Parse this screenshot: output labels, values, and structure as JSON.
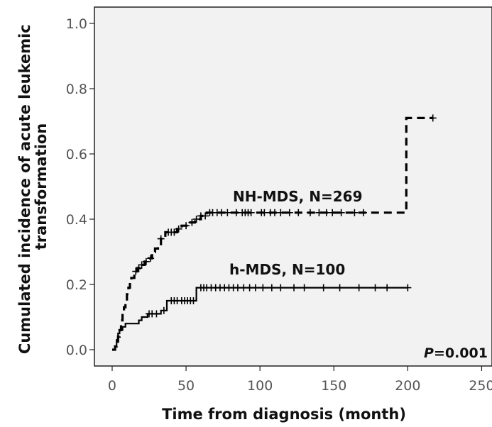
{
  "chart_data": {
    "type": "line",
    "subtype": "kaplan-meier step curve",
    "xlabel": "Time from diagnosis (month)",
    "ylabel": [
      "Cumulated incidence of acute leukemic",
      "transformation"
    ],
    "xlim": [
      -12,
      257
    ],
    "ylim": [
      -0.05,
      1.05
    ],
    "x_ticks": [
      0,
      50,
      100,
      150,
      200,
      250
    ],
    "x_tick_labels": [
      "0",
      "50",
      "100",
      "150",
      "200",
      "250"
    ],
    "y_ticks": [
      0.0,
      0.2,
      0.4,
      0.6,
      0.8,
      1.0
    ],
    "y_tick_labels": [
      "0.0",
      "0.2",
      "0.4",
      "0.6",
      "0.8",
      "1.0"
    ],
    "grid": false,
    "background": "#f2f2f2",
    "annotation": {
      "prefix": "P",
      "value": "=0.001"
    },
    "series": [
      {
        "name": "NH-MDS, N=269",
        "style": "dashed",
        "color": "#000000",
        "steps": [
          [
            0,
            0
          ],
          [
            2,
            0.01
          ],
          [
            3,
            0.02
          ],
          [
            4,
            0.04
          ],
          [
            5,
            0.06
          ],
          [
            6,
            0.09
          ],
          [
            7,
            0.11
          ],
          [
            8,
            0.13
          ],
          [
            9,
            0.15
          ],
          [
            10,
            0.17
          ],
          [
            11,
            0.19
          ],
          [
            12,
            0.21
          ],
          [
            13,
            0.22
          ],
          [
            15,
            0.24
          ],
          [
            17,
            0.25
          ],
          [
            19,
            0.26
          ],
          [
            22,
            0.27
          ],
          [
            25,
            0.28
          ],
          [
            27,
            0.3
          ],
          [
            29,
            0.31
          ],
          [
            31,
            0.32
          ],
          [
            33,
            0.34
          ],
          [
            36,
            0.36
          ],
          [
            44,
            0.37
          ],
          [
            47,
            0.38
          ],
          [
            52,
            0.39
          ],
          [
            56,
            0.4
          ],
          [
            60,
            0.41
          ],
          [
            64,
            0.42
          ],
          [
            199,
            0.42
          ],
          [
            199,
            0.71
          ],
          [
            217,
            0.71
          ]
        ],
        "censored_x": [
          16,
          18,
          20,
          23,
          26,
          33,
          38,
          40,
          42,
          45,
          50,
          54,
          57,
          60,
          63,
          66,
          68,
          71,
          74,
          78,
          84,
          88,
          90,
          92,
          94,
          101,
          103,
          107,
          110,
          114,
          120,
          126,
          134,
          140,
          145,
          149,
          155,
          164,
          170,
          217
        ]
      },
      {
        "name": "h-MDS, N=100",
        "style": "solid",
        "color": "#000000",
        "steps": [
          [
            0,
            0
          ],
          [
            2,
            0.01
          ],
          [
            3,
            0.03
          ],
          [
            4,
            0.05
          ],
          [
            5,
            0.06
          ],
          [
            7,
            0.07
          ],
          [
            9,
            0.08
          ],
          [
            18,
            0.09
          ],
          [
            20,
            0.1
          ],
          [
            24,
            0.11
          ],
          [
            33,
            0.12
          ],
          [
            37,
            0.15
          ],
          [
            57,
            0.15
          ],
          [
            57,
            0.19
          ],
          [
            200,
            0.19
          ]
        ],
        "censored_x": [
          25,
          27,
          30,
          35,
          40,
          42,
          44,
          47,
          49,
          51,
          53,
          55,
          60,
          62,
          64,
          67,
          70,
          73,
          76,
          79,
          82,
          85,
          89,
          93,
          97,
          102,
          108,
          114,
          123,
          130,
          143,
          154,
          167,
          178,
          186,
          200
        ]
      }
    ]
  }
}
